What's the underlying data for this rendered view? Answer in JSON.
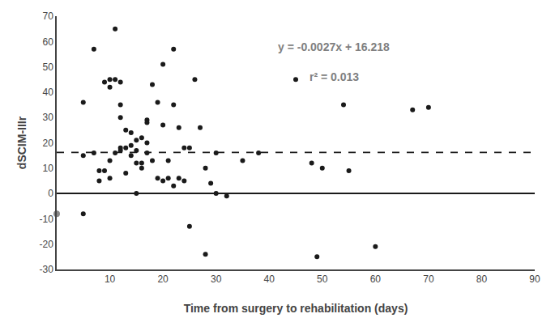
{
  "chart_data": {
    "type": "scatter",
    "x": [
      5,
      5,
      5,
      7,
      7,
      8,
      8,
      9,
      9,
      10,
      10,
      10,
      10,
      11,
      11,
      11,
      12,
      12,
      12,
      12,
      12,
      13,
      13,
      13,
      14,
      14,
      14,
      15,
      15,
      15,
      15,
      16,
      16,
      16,
      17,
      17,
      17,
      17,
      18,
      18,
      19,
      19,
      20,
      20,
      20,
      21,
      21,
      22,
      22,
      22,
      23,
      23,
      24,
      24,
      25,
      25,
      26,
      27,
      28,
      28,
      29,
      30,
      30,
      32,
      35,
      38,
      45,
      48,
      49,
      50,
      54,
      55,
      60,
      67,
      70
    ],
    "values": [
      36,
      15,
      -8,
      57,
      16,
      9,
      5,
      44,
      9,
      45,
      42,
      13,
      6,
      65,
      45,
      16,
      44,
      35,
      30,
      18,
      17,
      25,
      18,
      8,
      24,
      19,
      15,
      21,
      17,
      12,
      0,
      22,
      12,
      10,
      29,
      28,
      20,
      16,
      43,
      13,
      36,
      6,
      51,
      27,
      5,
      13,
      6,
      57,
      35,
      3,
      26,
      6,
      18,
      5,
      18,
      -13,
      45,
      26,
      10,
      -24,
      4,
      16,
      0,
      -1,
      13,
      16,
      45,
      12,
      -25,
      10,
      35,
      9,
      -21,
      33,
      34
    ],
    "color": "#1a1a1a",
    "marker": "circle",
    "hlines": [
      {
        "y": 16.218,
        "line_style": "dashed",
        "color": "#1a1a1a"
      },
      {
        "y": 0,
        "line_style": "solid",
        "color": "#1a1a1a"
      }
    ],
    "points": [
      {
        "x": 0,
        "y": -8,
        "color": "#888888"
      }
    ],
    "annotations": [
      {
        "text": "y = -0.0027x + 16.218",
        "color": "#808080"
      },
      {
        "text": "r² = 0.013",
        "color": "#808080"
      }
    ],
    "xlabel": "Time from surgery to rehabilitation (days)",
    "ylabel": "dSCIM-IIIr",
    "xlim": [
      0,
      90
    ],
    "ylim": [
      -30,
      70
    ],
    "xticks": [
      10,
      20,
      30,
      40,
      50,
      60,
      70,
      80,
      90
    ],
    "yticks": [
      -30,
      -20,
      -10,
      0,
      10,
      20,
      30,
      40,
      50,
      60,
      70
    ],
    "grid": false
  }
}
